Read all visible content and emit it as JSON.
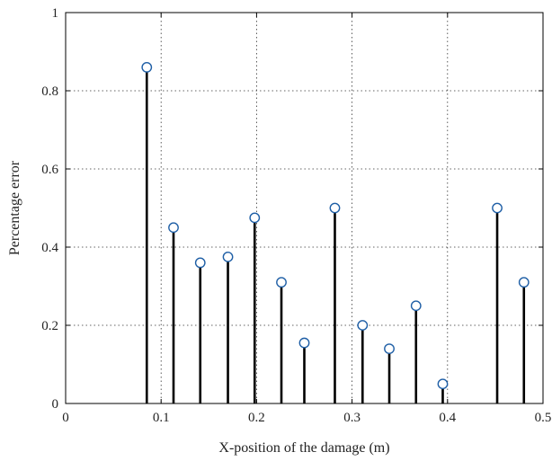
{
  "chart_data": {
    "type": "stem",
    "title": "",
    "xlabel": "X-position of the damage (m)",
    "ylabel": "Percentage error",
    "xlim": [
      0,
      0.5
    ],
    "ylim": [
      0,
      1
    ],
    "xticks": [
      0,
      0.1,
      0.2,
      0.3,
      0.4,
      0.5
    ],
    "xtick_labels": [
      "0",
      "0.1",
      "0.2",
      "0.3",
      "0.4",
      "0.5"
    ],
    "yticks": [
      0,
      0.2,
      0.4,
      0.6,
      0.8,
      1
    ],
    "ytick_labels": [
      "0",
      "0.2",
      "0.4",
      "0.6",
      "0.8",
      "1"
    ],
    "grid": true,
    "grid_style": "dotted",
    "x": [
      0.085,
      0.113,
      0.141,
      0.17,
      0.198,
      0.226,
      0.25,
      0.282,
      0.311,
      0.339,
      0.367,
      0.395,
      0.452,
      0.48
    ],
    "y": [
      0.86,
      0.45,
      0.36,
      0.375,
      0.475,
      0.31,
      0.155,
      0.5,
      0.2,
      0.14,
      0.25,
      0.05,
      0.5,
      0.31
    ],
    "stem_color": "#000000",
    "marker": "circle",
    "marker_color": "#1f5fa6"
  }
}
